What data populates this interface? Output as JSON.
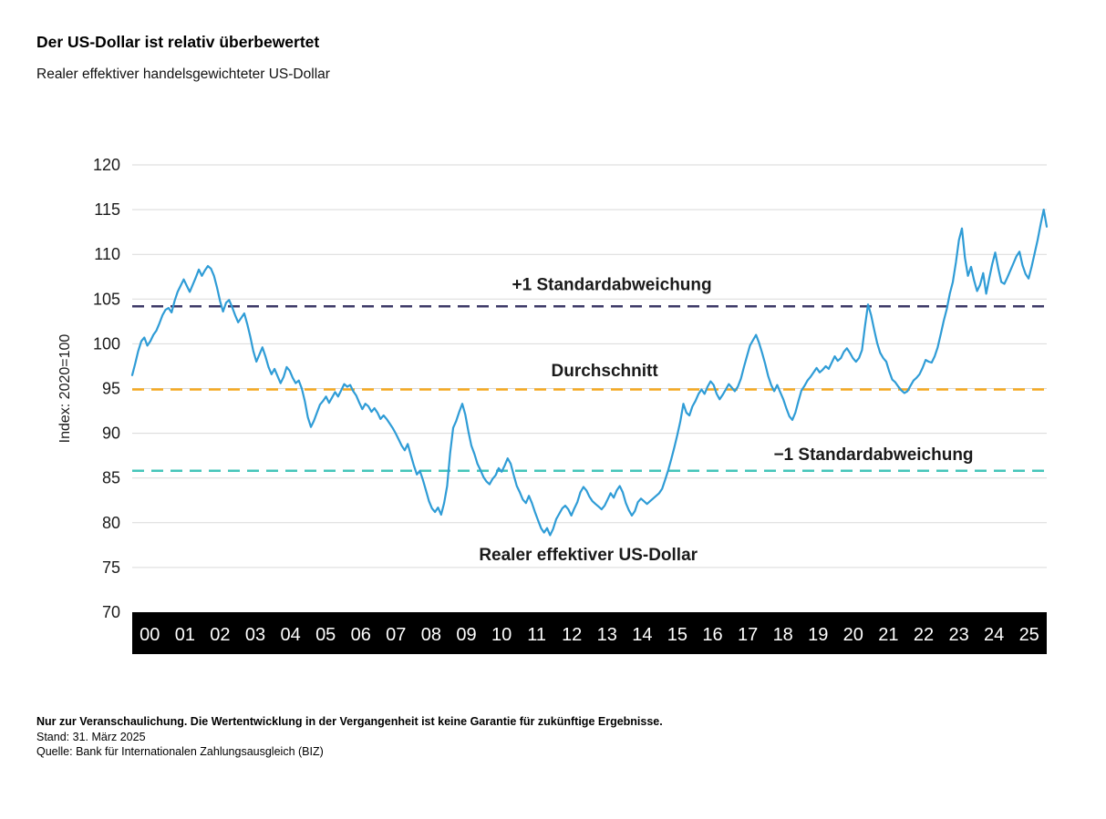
{
  "footer": {
    "disclaimer": "Nur zur Veranschaulichung. Die Wertentwicklung in der Vergangenheit ist keine Garantie für zukünftige Ergebnisse.",
    "as_of": "Stand: 31. März 2025",
    "source": "Quelle: Bank für Internationalen Zahlungsausgleich (BIZ)"
  },
  "chart_data": {
    "type": "line",
    "title": "Der US-Dollar ist relativ überbewertet",
    "subtitle": "Realer effektiver handelsgewichteter US-Dollar",
    "xlabel": "",
    "ylabel": "Index: 2020=100",
    "ylim": [
      70,
      120
    ],
    "ytick_step": 5,
    "grid": true,
    "x_start": "2000-01",
    "x_end": "2025-03",
    "x_tick_labels": [
      "00",
      "01",
      "02",
      "03",
      "04",
      "05",
      "06",
      "07",
      "08",
      "09",
      "10",
      "11",
      "12",
      "13",
      "14",
      "15",
      "16",
      "17",
      "18",
      "19",
      "20",
      "21",
      "22",
      "23",
      "24",
      "25"
    ],
    "colors": {
      "grid": "#d9d9d9",
      "text": "#1a1a1a",
      "axis_band": "#000000",
      "axis_band_text": "#ffffff"
    },
    "series": [
      {
        "name": "Realer effektiver US-Dollar",
        "color": "#2f9cd6",
        "frequency": "monthly",
        "monthly_values": [
          96.5,
          97.8,
          99.2,
          100.3,
          100.7,
          99.8,
          100.3,
          101.0,
          101.5,
          102.3,
          103.2,
          103.8,
          104.0,
          103.5,
          104.8,
          105.8,
          106.5,
          107.2,
          106.5,
          105.8,
          106.6,
          107.4,
          108.3,
          107.6,
          108.2,
          108.7,
          108.4,
          107.6,
          106.3,
          104.8,
          103.6,
          104.6,
          104.9,
          104.1,
          103.2,
          102.4,
          102.9,
          103.4,
          102.2,
          100.8,
          99.2,
          98.0,
          98.8,
          99.6,
          98.6,
          97.4,
          96.6,
          97.2,
          96.4,
          95.6,
          96.3,
          97.4,
          97.0,
          96.2,
          95.6,
          95.9,
          95.0,
          93.6,
          91.8,
          90.7,
          91.4,
          92.3,
          93.2,
          93.6,
          94.1,
          93.4,
          94.0,
          94.6,
          94.1,
          94.8,
          95.5,
          95.2,
          95.4,
          94.7,
          94.2,
          93.4,
          92.7,
          93.3,
          93.0,
          92.4,
          92.8,
          92.3,
          91.6,
          92.0,
          91.6,
          91.1,
          90.6,
          90.0,
          89.3,
          88.6,
          88.1,
          88.8,
          87.6,
          86.4,
          85.4,
          85.8,
          84.8,
          83.6,
          82.4,
          81.6,
          81.2,
          81.7,
          80.9,
          82.2,
          84.1,
          87.8,
          90.6,
          91.4,
          92.4,
          93.3,
          92.1,
          90.2,
          88.6,
          87.7,
          86.6,
          85.9,
          85.1,
          84.6,
          84.3,
          84.9,
          85.3,
          86.1,
          85.7,
          86.4,
          87.2,
          86.6,
          85.3,
          84.1,
          83.4,
          82.6,
          82.2,
          83.0,
          82.2,
          81.2,
          80.3,
          79.4,
          78.9,
          79.4,
          78.6,
          79.3,
          80.4,
          81.0,
          81.6,
          81.9,
          81.5,
          80.8,
          81.6,
          82.3,
          83.4,
          84.0,
          83.6,
          82.9,
          82.4,
          82.1,
          81.8,
          81.5,
          81.9,
          82.6,
          83.3,
          82.8,
          83.6,
          84.1,
          83.4,
          82.2,
          81.4,
          80.8,
          81.3,
          82.3,
          82.7,
          82.4,
          82.1,
          82.4,
          82.7,
          83.0,
          83.3,
          83.8,
          84.8,
          85.9,
          87.1,
          88.4,
          89.8,
          91.3,
          93.3,
          92.3,
          92.0,
          93.0,
          93.6,
          94.4,
          94.9,
          94.4,
          95.2,
          95.8,
          95.4,
          94.4,
          93.8,
          94.3,
          94.9,
          95.5,
          95.1,
          94.7,
          95.2,
          96.1,
          97.4,
          98.6,
          99.8,
          100.4,
          101.0,
          100.1,
          99.0,
          97.8,
          96.4,
          95.4,
          94.7,
          95.4,
          94.6,
          93.8,
          92.8,
          91.9,
          91.5,
          92.3,
          93.6,
          94.8,
          95.3,
          95.9,
          96.3,
          96.8,
          97.3,
          96.8,
          97.1,
          97.5,
          97.2,
          97.9,
          98.6,
          98.1,
          98.4,
          99.1,
          99.5,
          99.0,
          98.4,
          98.0,
          98.4,
          99.3,
          102.0,
          104.4,
          103.2,
          101.6,
          100.1,
          99.0,
          98.4,
          98.0,
          96.9,
          96.0,
          95.7,
          95.2,
          94.8,
          94.5,
          94.7,
          95.3,
          95.9,
          96.2,
          96.6,
          97.3,
          98.2,
          98.0,
          97.9,
          98.6,
          99.6,
          101.1,
          102.6,
          103.9,
          105.6,
          106.9,
          109.1,
          111.6,
          112.9,
          109.6,
          107.6,
          108.6,
          107.1,
          105.9,
          106.6,
          107.9,
          105.6,
          107.3,
          108.9,
          110.2,
          108.4,
          106.9,
          106.7,
          107.4,
          108.2,
          109.0,
          109.8,
          110.3,
          108.8,
          107.8,
          107.3,
          108.6,
          110.1,
          111.6,
          113.4,
          115.0,
          113.1
        ]
      }
    ],
    "reference_lines": [
      {
        "name": "plus-one-sd",
        "label": "+1 Standardabweichung",
        "value": 104.2,
        "color": "#3d3a68",
        "style": "dashed"
      },
      {
        "name": "mean",
        "label": "Durchschnitt",
        "value": 94.9,
        "color": "#f5a81f",
        "style": "dashed"
      },
      {
        "name": "minus-one-sd",
        "label": "−1 Standardabweichung",
        "value": 85.8,
        "color": "#44c5b9",
        "style": "dashed"
      }
    ],
    "annotations": [
      {
        "text": "+1 Standardabweichung",
        "x_year": 2013.2,
        "y": 106.6
      },
      {
        "text": "Durchschnitt",
        "x_year": 2013.0,
        "y": 97.0
      },
      {
        "text": "−1 Standardabweichung",
        "x_year": 2020.4,
        "y": 87.6
      },
      {
        "text": "Realer effektiver US-Dollar",
        "x_year": 2012.55,
        "y": 76.4
      }
    ],
    "legend": "none"
  }
}
